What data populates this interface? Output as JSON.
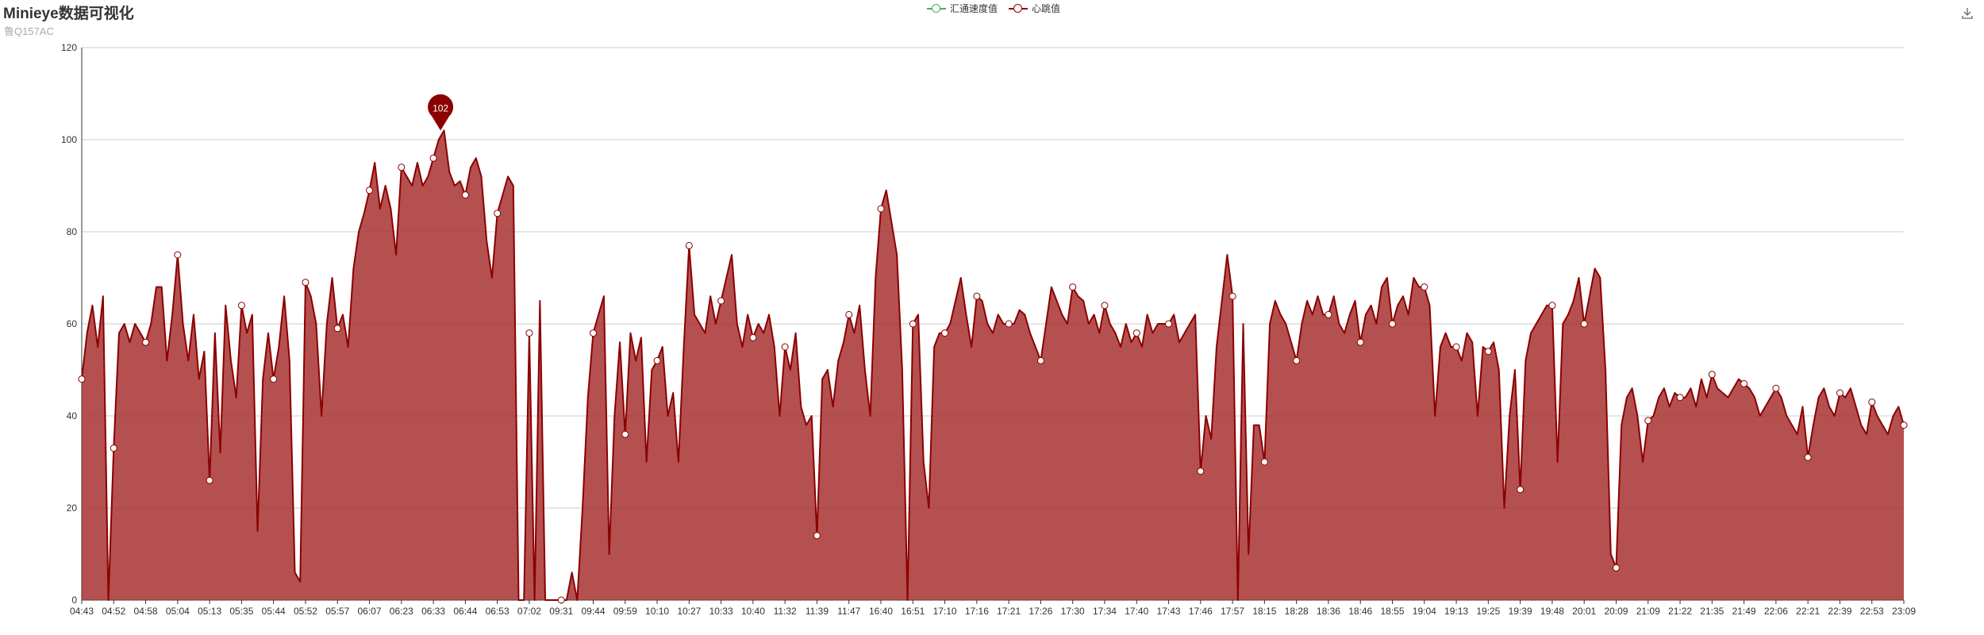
{
  "header": {
    "title": "Minieye数据可视化",
    "subtitle": "鲁Q157AC"
  },
  "legend": [
    {
      "label": "汇通速度值",
      "color": "#4caf50"
    },
    {
      "label": "心跳值",
      "color": "#8b0000"
    }
  ],
  "toolbox": {
    "icon": "download-icon"
  },
  "chart_data": {
    "type": "area",
    "title": "Minieye数据可视化",
    "subtitle": "鲁Q157AC",
    "xlabel": "",
    "ylabel": "",
    "ylim": [
      0,
      120
    ],
    "y_ticks": [
      0,
      20,
      40,
      60,
      80,
      100,
      120
    ],
    "grid": true,
    "legend_position": "top-center",
    "x_tick_labels": [
      "04:43",
      "04:52",
      "04:58",
      "05:04",
      "05:13",
      "05:35",
      "05:44",
      "05:52",
      "05:57",
      "06:07",
      "06:23",
      "06:33",
      "06:44",
      "06:53",
      "07:02",
      "09:31",
      "09:44",
      "09:59",
      "10:10",
      "10:27",
      "10:33",
      "10:40",
      "11:32",
      "11:39",
      "11:47",
      "16:40",
      "16:51",
      "17:10",
      "17:16",
      "17:21",
      "17:26",
      "17:30",
      "17:34",
      "17:40",
      "17:43",
      "17:46",
      "17:57",
      "18:15",
      "18:28",
      "18:36",
      "18:46",
      "18:55",
      "19:04",
      "19:13",
      "19:25",
      "19:39",
      "19:48",
      "20:01",
      "20:09",
      "21:09",
      "21:22",
      "21:35",
      "21:49",
      "22:06",
      "22:21",
      "22:39",
      "22:53",
      "23:09"
    ],
    "series": [
      {
        "name": "汇通速度值",
        "color": "#4caf50",
        "values": []
      },
      {
        "name": "心跳值",
        "color": "#8b0000",
        "fill": "#a52a2a",
        "max_marker": {
          "value": 102,
          "x_label": "06:33"
        },
        "values": [
          [
            48,
            58,
            64,
            55,
            66,
            0
          ],
          [
            33,
            58,
            60,
            56,
            60,
            58
          ],
          [
            56,
            60,
            68,
            68,
            52,
            62
          ],
          [
            75,
            60,
            52,
            62,
            48,
            54
          ],
          [
            26,
            58,
            32,
            64,
            52,
            44
          ],
          [
            64,
            58,
            62,
            15,
            48,
            58
          ],
          [
            48,
            55,
            66,
            52,
            6,
            4
          ],
          [
            69,
            66,
            60,
            40,
            60,
            70
          ],
          [
            59,
            62,
            55,
            72,
            80,
            84
          ],
          [
            89,
            95,
            85,
            90,
            85,
            75
          ],
          [
            94,
            92,
            90,
            95,
            90,
            92
          ],
          [
            96,
            100,
            102,
            93,
            90,
            91
          ],
          [
            88,
            94,
            96,
            92,
            78,
            70
          ],
          [
            84,
            88,
            92,
            90,
            0,
            0
          ],
          [
            58,
            0,
            65,
            0,
            0,
            0
          ],
          [
            0,
            0,
            6,
            0,
            20,
            44
          ],
          [
            58,
            62,
            66,
            10,
            40,
            56
          ],
          [
            36,
            58,
            52,
            57,
            30,
            50
          ],
          [
            52,
            55,
            40,
            45,
            30,
            55
          ],
          [
            77,
            62,
            60,
            58,
            66,
            60
          ],
          [
            65,
            70,
            75,
            60,
            55,
            62
          ],
          [
            57,
            60,
            58,
            62,
            55,
            40
          ],
          [
            55,
            50,
            58,
            42,
            38,
            40
          ],
          [
            14,
            48,
            50,
            42,
            52,
            56
          ],
          [
            62,
            58,
            64,
            50,
            40,
            70
          ],
          [
            85,
            89,
            82,
            75,
            50,
            0
          ],
          [
            60,
            62,
            30,
            20,
            55,
            58
          ],
          [
            58,
            60,
            65,
            70,
            62,
            55
          ],
          [
            66,
            65,
            60,
            58,
            62,
            60
          ],
          [
            60,
            60,
            63,
            62,
            58,
            55
          ],
          [
            52,
            60,
            68,
            65,
            62,
            60
          ],
          [
            68,
            66,
            65,
            60,
            62,
            58
          ],
          [
            64,
            60,
            58,
            55,
            60,
            56
          ],
          [
            58,
            55,
            62,
            58,
            60,
            60
          ],
          [
            60,
            62,
            56,
            58,
            60,
            62
          ],
          [
            28,
            40,
            35,
            55,
            65,
            75
          ],
          [
            66,
            0,
            60,
            10,
            38,
            38
          ],
          [
            30,
            60,
            65,
            62,
            60,
            56
          ],
          [
            52,
            60,
            65,
            62,
            66,
            62
          ],
          [
            62,
            66,
            60,
            58,
            62,
            65
          ],
          [
            56,
            62,
            64,
            60,
            68,
            70
          ],
          [
            60,
            64,
            66,
            62,
            70,
            68
          ],
          [
            68,
            64,
            40,
            55,
            58,
            55
          ],
          [
            55,
            52,
            58,
            56,
            40,
            55
          ],
          [
            54,
            56,
            50,
            20,
            40,
            50
          ],
          [
            24,
            52,
            58,
            60,
            62,
            64
          ],
          [
            64,
            30,
            60,
            62,
            65,
            70
          ],
          [
            60,
            66,
            72,
            70,
            50,
            10
          ],
          [
            7,
            38,
            44,
            46,
            40,
            30
          ],
          [
            39,
            40,
            44,
            46,
            42,
            45
          ],
          [
            44,
            44,
            46,
            42,
            48,
            44
          ],
          [
            49,
            46,
            45,
            44,
            46,
            48
          ],
          [
            47,
            46,
            44,
            40,
            42,
            44
          ],
          [
            46,
            44,
            40,
            38,
            36,
            42
          ],
          [
            31,
            38,
            44,
            46,
            42,
            40
          ],
          [
            45,
            44,
            46,
            42,
            38,
            36
          ],
          [
            43,
            40,
            38,
            36,
            40,
            42
          ],
          [
            38
          ]
        ]
      }
    ],
    "marker_points": [
      {
        "x_label": "04:43",
        "y": 48
      },
      {
        "x_label": "04:52",
        "y": 33
      },
      {
        "x_label": "04:58",
        "y": 56
      },
      {
        "x_label": "05:04",
        "y": 75
      },
      {
        "x_label": "05:13",
        "y": 26
      },
      {
        "x_label": "05:35",
        "y": 64
      },
      {
        "x_label": "05:44",
        "y": 48
      },
      {
        "x_label": "05:52",
        "y": 69
      },
      {
        "x_label": "05:57",
        "y": 59
      },
      {
        "x_label": "06:07",
        "y": 89
      },
      {
        "x_label": "06:23",
        "y": 94
      },
      {
        "x_label": "06:33",
        "y": 96
      },
      {
        "x_label": "06:44",
        "y": 88
      },
      {
        "x_label": "06:53",
        "y": 84
      },
      {
        "x_label": "07:02",
        "y": 58
      },
      {
        "x_label": "09:31",
        "y": 0
      },
      {
        "x_label": "09:44",
        "y": 58
      },
      {
        "x_label": "09:59",
        "y": 36
      },
      {
        "x_label": "10:10",
        "y": 52
      },
      {
        "x_label": "10:27",
        "y": 77
      },
      {
        "x_label": "10:33",
        "y": 65
      },
      {
        "x_label": "10:40",
        "y": 57
      },
      {
        "x_label": "11:32",
        "y": 55
      },
      {
        "x_label": "11:39",
        "y": 14
      },
      {
        "x_label": "11:47",
        "y": 62
      },
      {
        "x_label": "16:40",
        "y": 85
      },
      {
        "x_label": "16:51",
        "y": 60
      },
      {
        "x_label": "17:10",
        "y": 58
      },
      {
        "x_label": "17:16",
        "y": 66
      },
      {
        "x_label": "17:21",
        "y": 60
      },
      {
        "x_label": "17:26",
        "y": 52
      },
      {
        "x_label": "17:30",
        "y": 68
      },
      {
        "x_label": "17:34",
        "y": 64
      },
      {
        "x_label": "17:40",
        "y": 58
      },
      {
        "x_label": "17:43",
        "y": 60
      },
      {
        "x_label": "17:46",
        "y": 28
      },
      {
        "x_label": "17:57",
        "y": 66
      },
      {
        "x_label": "18:15",
        "y": 30
      },
      {
        "x_label": "18:28",
        "y": 52
      },
      {
        "x_label": "18:36",
        "y": 62
      },
      {
        "x_label": "18:46",
        "y": 56
      },
      {
        "x_label": "18:55",
        "y": 60
      },
      {
        "x_label": "19:04",
        "y": 68
      },
      {
        "x_label": "19:13",
        "y": 55
      },
      {
        "x_label": "19:25",
        "y": 54
      },
      {
        "x_label": "19:39",
        "y": 24
      },
      {
        "x_label": "19:48",
        "y": 64
      },
      {
        "x_label": "20:01",
        "y": 60
      },
      {
        "x_label": "20:09",
        "y": 7
      },
      {
        "x_label": "21:09",
        "y": 39
      },
      {
        "x_label": "21:22",
        "y": 44
      },
      {
        "x_label": "21:35",
        "y": 49
      },
      {
        "x_label": "21:49",
        "y": 47
      },
      {
        "x_label": "22:06",
        "y": 46
      },
      {
        "x_label": "22:21",
        "y": 31
      },
      {
        "x_label": "22:39",
        "y": 45
      },
      {
        "x_label": "22:53",
        "y": 43
      },
      {
        "x_label": "23:09",
        "y": 38
      }
    ]
  }
}
